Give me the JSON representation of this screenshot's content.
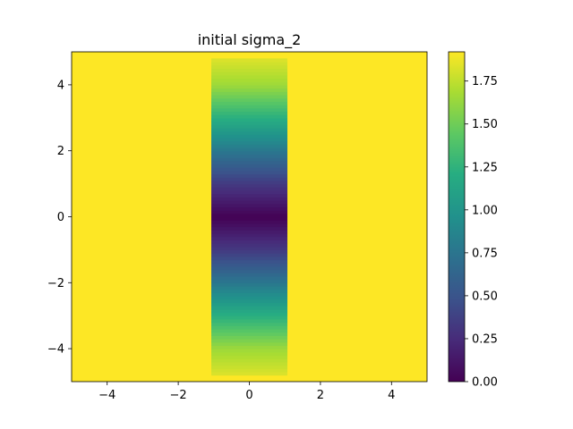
{
  "chart_data": {
    "type": "heatmap",
    "title": "initial sigma_2",
    "xlabel": "",
    "ylabel": "",
    "xlim": [
      -5,
      5
    ],
    "ylim": [
      -5,
      5
    ],
    "x_ticks": [
      -4,
      -2,
      0,
      2,
      4
    ],
    "y_ticks": [
      -4,
      -2,
      0,
      2,
      4
    ],
    "x_tick_labels": [
      "−4",
      "−2",
      "0",
      "2",
      "4"
    ],
    "y_tick_labels": [
      "−4",
      "−2",
      "0",
      "2",
      "4"
    ],
    "colormap": "viridis",
    "background_value": 1.92,
    "band": {
      "x_range": [
        -1.07,
        1.07
      ],
      "y_range": [
        -4.8,
        4.8
      ],
      "profile_y": [
        -4.8,
        -4,
        -3,
        -2,
        -1,
        0,
        1,
        2,
        3,
        4,
        4.8
      ],
      "profile_values": [
        1.83,
        1.65,
        1.22,
        0.77,
        0.33,
        0.0,
        0.33,
        0.77,
        1.22,
        1.65,
        1.83
      ]
    },
    "colorbar": {
      "range": [
        0.0,
        1.92
      ],
      "ticks": [
        0.0,
        0.25,
        0.5,
        0.75,
        1.0,
        1.25,
        1.5,
        1.75
      ],
      "tick_labels": [
        "0.00",
        "0.25",
        "0.50",
        "0.75",
        "1.00",
        "1.25",
        "1.50",
        "1.75"
      ]
    },
    "grid": false,
    "legend": "none"
  }
}
